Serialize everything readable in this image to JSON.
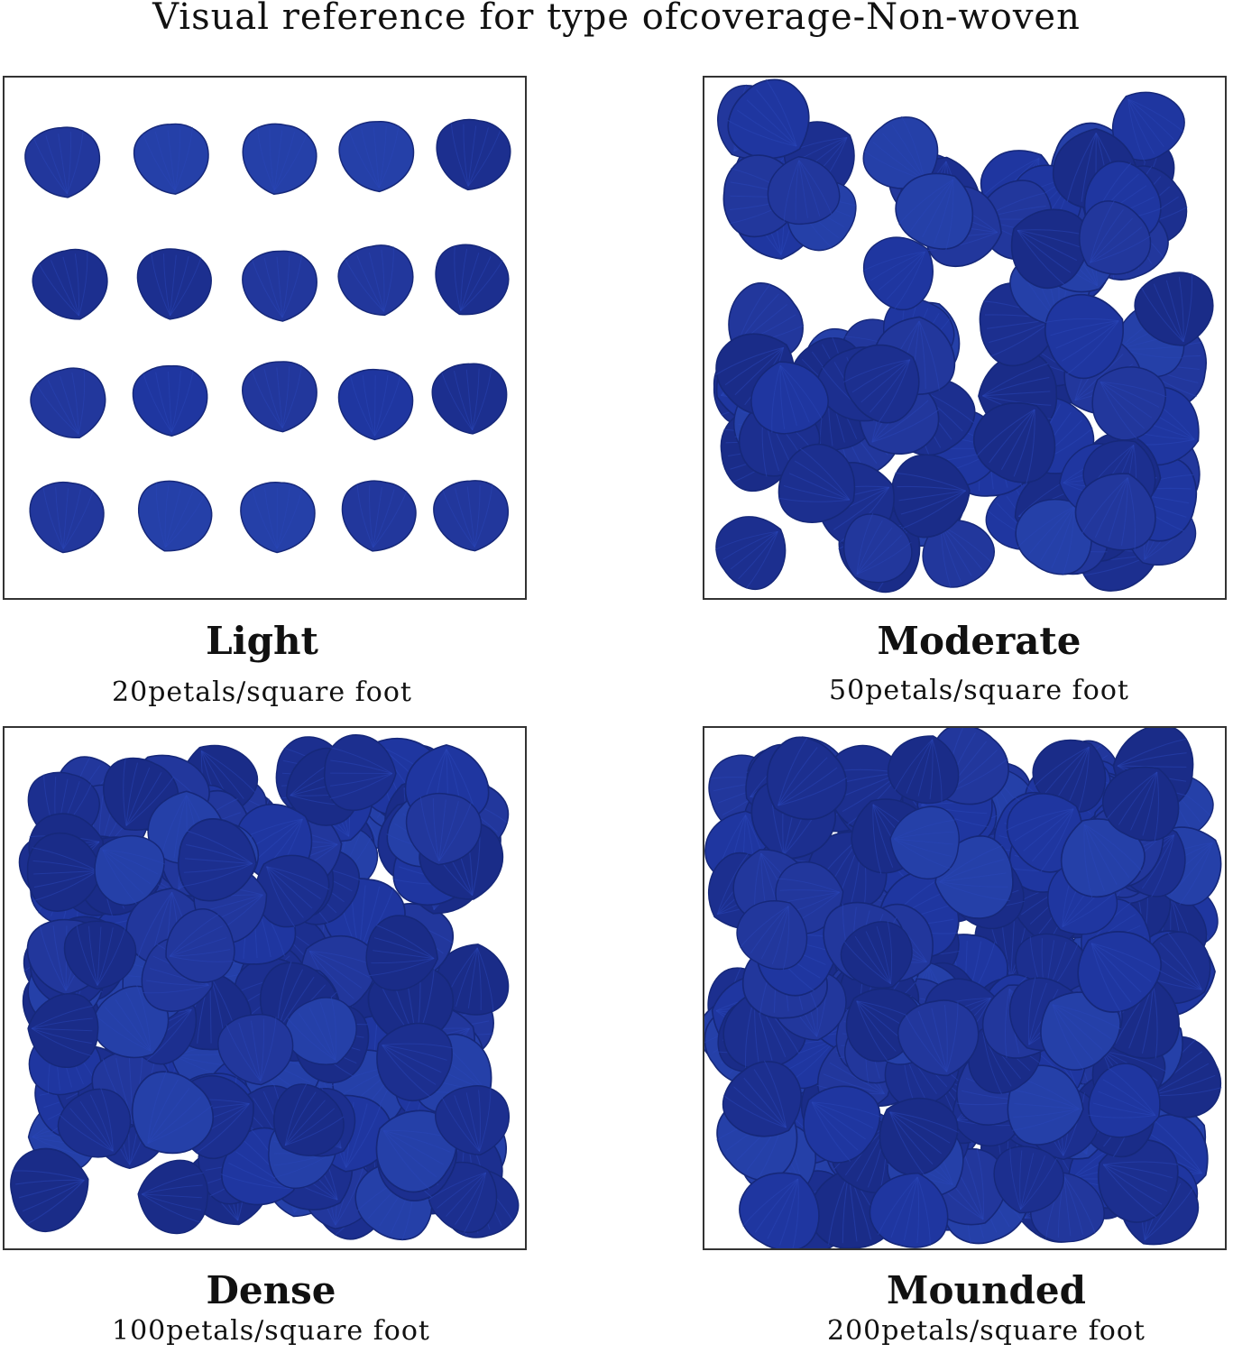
{
  "title": "Visual reference for type ofcoverage-Non-woven",
  "petal_color": "#1f36a0",
  "panels": [
    {
      "label": "Light",
      "density": "20petals/square foot",
      "style": "grid"
    },
    {
      "label": "Moderate",
      "density": "50petals/square foot",
      "style": "scatter"
    },
    {
      "label": "Dense",
      "density": "100petals/square foot",
      "style": "scatter"
    },
    {
      "label": "Mounded",
      "density": "200petals/square foot",
      "style": "scatter"
    }
  ]
}
